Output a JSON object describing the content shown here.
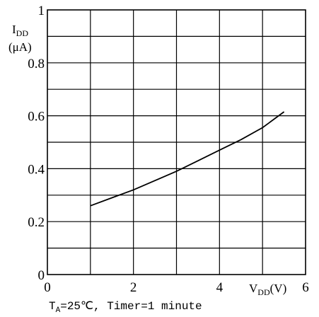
{
  "chart_data": {
    "type": "line",
    "x": [
      1.0,
      1.5,
      2.0,
      2.5,
      3.0,
      3.5,
      4.0,
      4.5,
      5.0,
      5.5
    ],
    "series": [
      {
        "values": [
          0.26,
          0.29,
          0.32,
          0.355,
          0.39,
          0.43,
          0.47,
          0.51,
          0.555,
          0.615
        ],
        "color": "#000000"
      }
    ],
    "xlim": [
      0,
      6
    ],
    "ylim": [
      0,
      1
    ],
    "x_ticks": [
      "0",
      "2",
      "4",
      "6"
    ],
    "y_ticks": [
      "0",
      "0.2",
      "0.4",
      "0.6",
      "0.8",
      "1"
    ],
    "ylabel": {
      "main": "I",
      "sub": "DD",
      "unit": "(μA)"
    },
    "xlabel": {
      "main": "V",
      "sub": "DD",
      "unit": "(V)"
    },
    "annotation": {
      "t_main": "T",
      "t_sub": "A",
      "rest": "=25℃, Timer=1 minute"
    },
    "grid": true,
    "legend": "none"
  }
}
